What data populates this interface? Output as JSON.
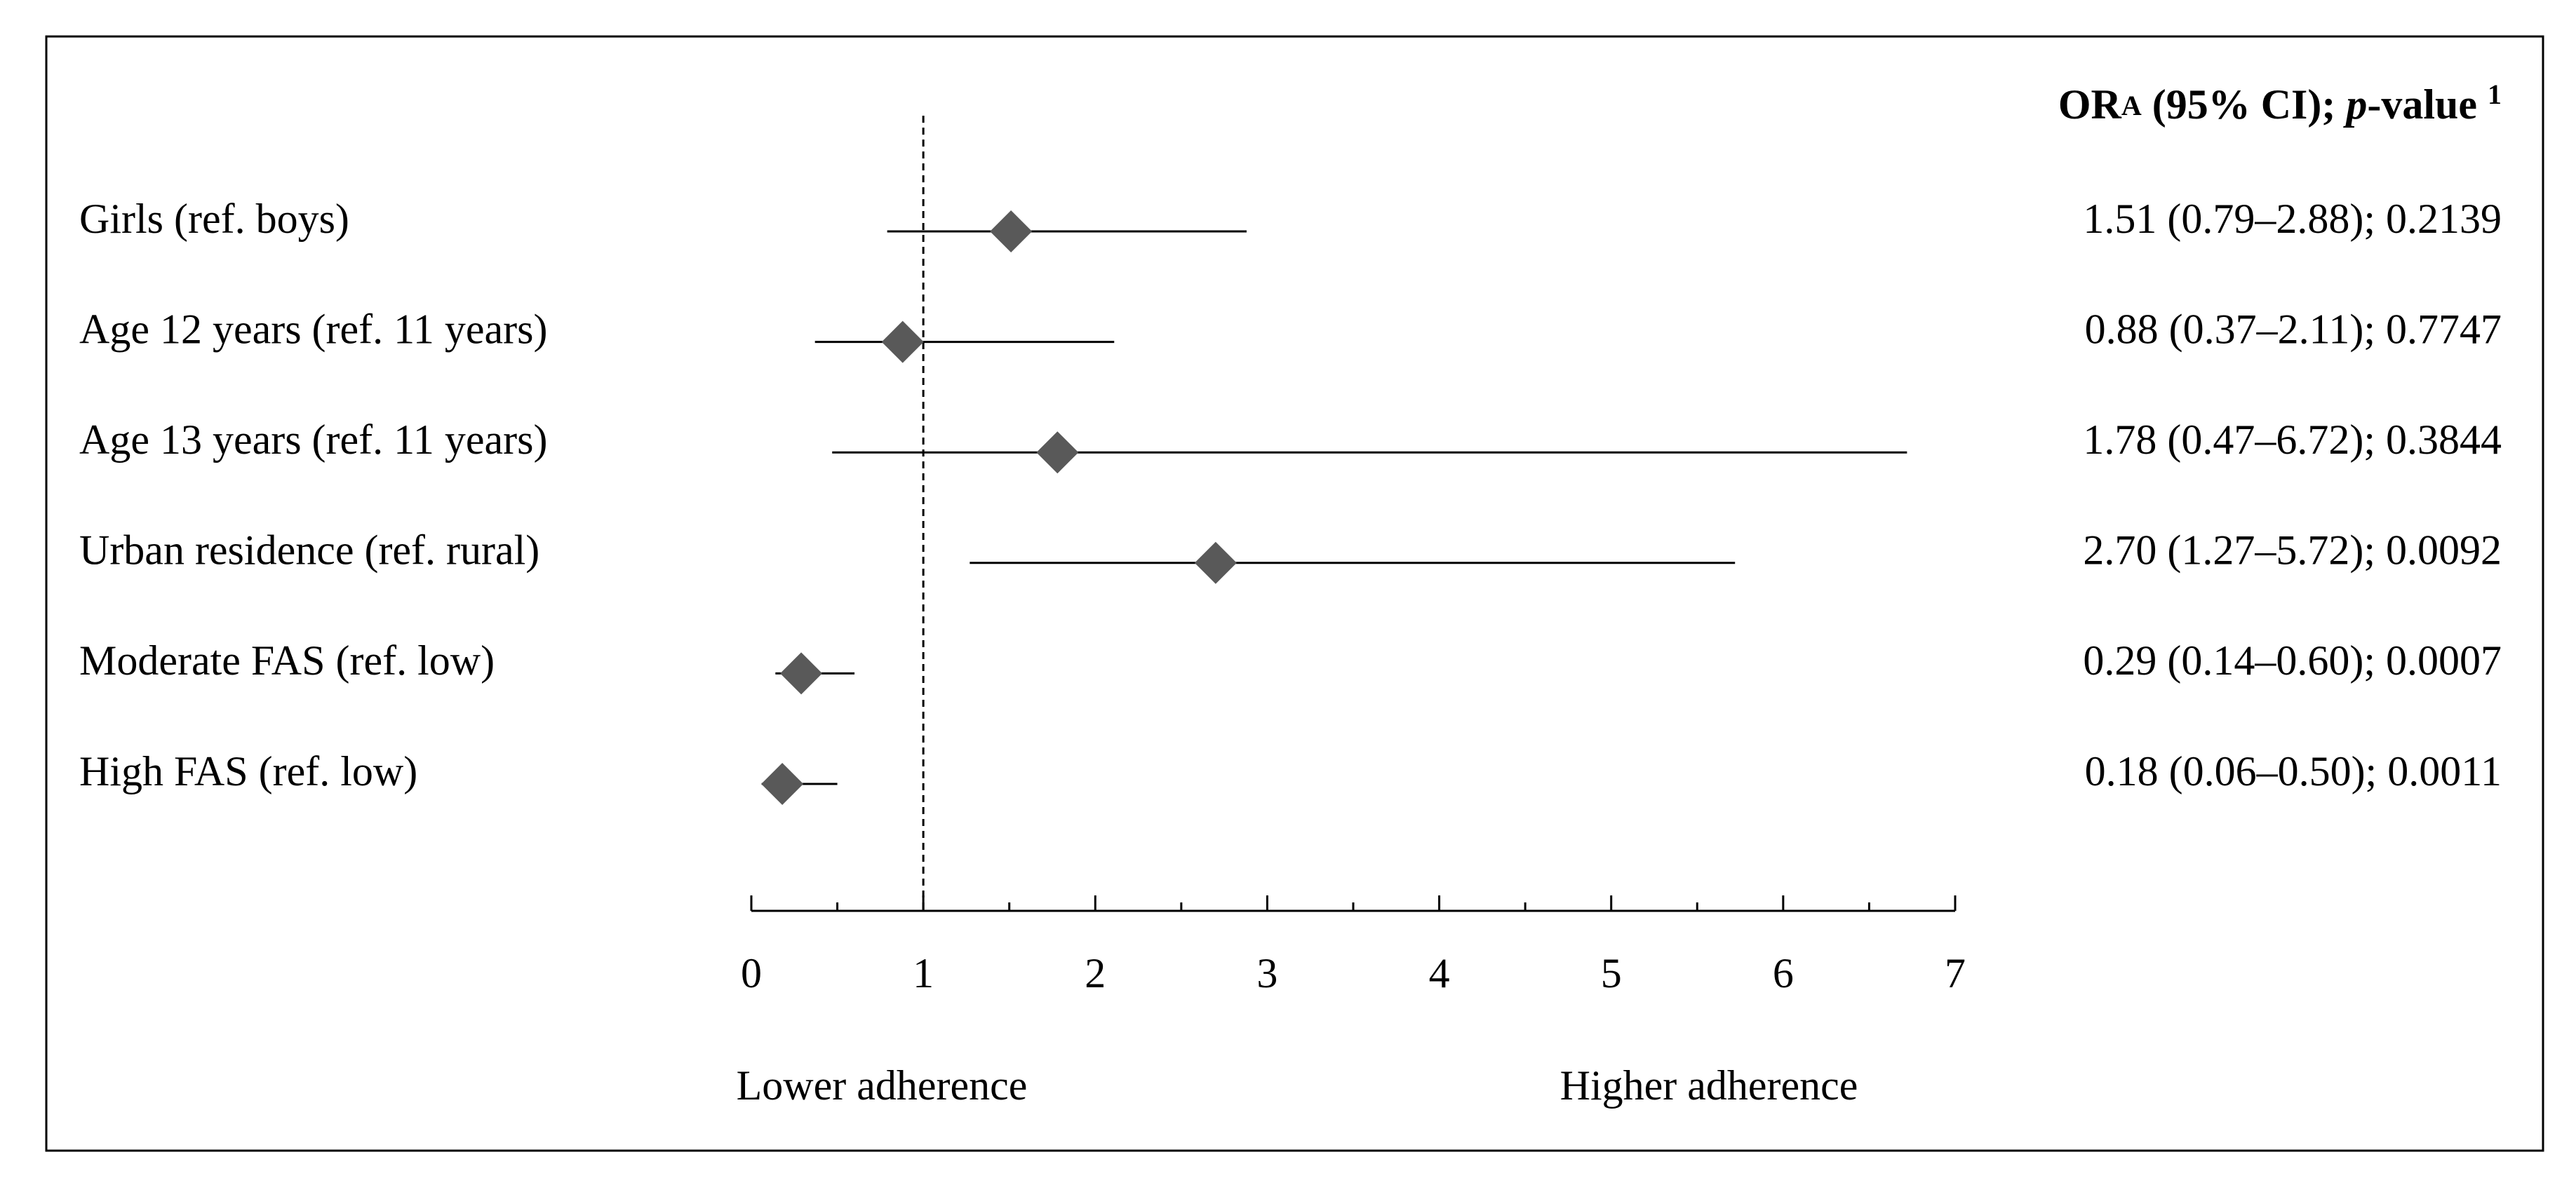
{
  "chart_data": {
    "type": "forest",
    "header": [
      "OR",
      "A",
      " (95% CI); ",
      "p",
      "-value ",
      "1"
    ],
    "categories": [
      "Girls (ref. boys)",
      "Age 12 years (ref. 11 years)",
      "Age 13 years (ref. 11 years)",
      "Urban residence (ref. rural)",
      "Moderate FAS (ref. low)",
      "High FAS (ref. low)"
    ],
    "values": [
      1.51,
      0.88,
      1.78,
      2.7,
      0.29,
      0.18
    ],
    "ci_low": [
      0.79,
      0.37,
      0.47,
      1.27,
      0.14,
      0.06
    ],
    "ci_high": [
      2.88,
      2.11,
      6.72,
      5.72,
      0.6,
      0.5
    ],
    "value_labels": [
      "1.51 (0.79–2.88); 0.2139",
      "0.88 (0.37–2.11); 0.7747",
      "1.78 (0.47–6.72); 0.3844",
      "2.70 (1.27–5.72); 0.0092",
      "0.29 (0.14–0.60); 0.0007",
      "0.18 (0.06–0.50); 0.0011"
    ],
    "color": "#595959",
    "xlim": [
      0,
      7
    ],
    "xticks": [
      0,
      1,
      2,
      3,
      4,
      5,
      6,
      7
    ],
    "minor_xticks": [
      0.5,
      1.5,
      2.5,
      3.5,
      4.5,
      5.5,
      6.5
    ],
    "reference_line": 1,
    "xlabel_left": "Lower adherence",
    "xlabel_right": "Higher adherence"
  }
}
